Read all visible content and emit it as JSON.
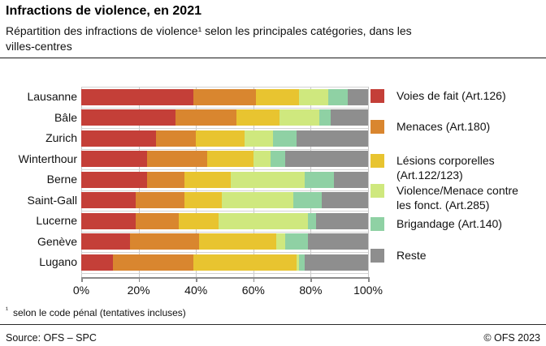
{
  "header": {
    "title": "Infractions de violence, en 2021",
    "subtitle_line1": "Répartition des infractions de violence¹ selon les principales catégories, dans les",
    "subtitle_line2": "villes-centres"
  },
  "chart_data": {
    "type": "bar",
    "orientation": "horizontal",
    "stacked": true,
    "unit": "%",
    "categories": [
      "Lausanne",
      "Bâle",
      "Zurich",
      "Winterthour",
      "Berne",
      "Saint-Gall",
      "Lucerne",
      "Genève",
      "Lugano"
    ],
    "series": [
      {
        "name": "Voies de fait (Art.126)",
        "color": "#c43f38",
        "values": [
          39,
          33,
          26,
          23,
          23,
          19,
          19,
          17,
          11
        ]
      },
      {
        "name": "Menaces (Art.180)",
        "color": "#d9862f",
        "values": [
          22,
          21,
          14,
          21,
          13,
          17,
          15,
          24,
          28
        ]
      },
      {
        "name": "Lésions corporelles (Art.122/123)",
        "color": "#e8c430",
        "values": [
          15,
          15,
          17,
          16,
          16,
          13,
          14,
          27,
          36
        ]
      },
      {
        "name": "Violence/Menace contre les fonct. (Art.285)",
        "color": "#cfe87e",
        "values": [
          10,
          14,
          10,
          6,
          26,
          25,
          31,
          3,
          1
        ]
      },
      {
        "name": "Brigandage (Art.140)",
        "color": "#8fd1a4",
        "values": [
          7,
          4,
          8,
          5,
          10,
          10,
          3,
          8,
          2
        ]
      },
      {
        "name": "Reste",
        "color": "#8e8e8e",
        "values": [
          7,
          13,
          25,
          29,
          12,
          16,
          18,
          21,
          22
        ]
      }
    ],
    "xlim": [
      0,
      100
    ],
    "x_ticks": [
      "0%",
      "20%",
      "40%",
      "60%",
      "80%",
      "100%"
    ],
    "grid": true,
    "legend_position": "right"
  },
  "legend": {
    "items": [
      {
        "lines": [
          "Voies de fait (Art.126)"
        ],
        "color": "#c43f38"
      },
      {
        "lines": [
          "Menaces (Art.180)"
        ],
        "color": "#d9862f"
      },
      {
        "lines": [
          "Lésions corporelles",
          "(Art.122/123)"
        ],
        "color": "#e8c430"
      },
      {
        "lines": [
          "Violence/Menace contre",
          "les fonct. (Art.285)"
        ],
        "color": "#cfe87e"
      },
      {
        "lines": [
          "Brigandage (Art.140)"
        ],
        "color": "#8fd1a4"
      },
      {
        "lines": [
          "Reste"
        ],
        "color": "#8e8e8e"
      }
    ]
  },
  "footnote": {
    "marker": "¹",
    "text": "selon le code pénal (tentatives incluses)"
  },
  "footer": {
    "source": "Source: OFS – SPC",
    "copyright": "© OFS 2023"
  }
}
